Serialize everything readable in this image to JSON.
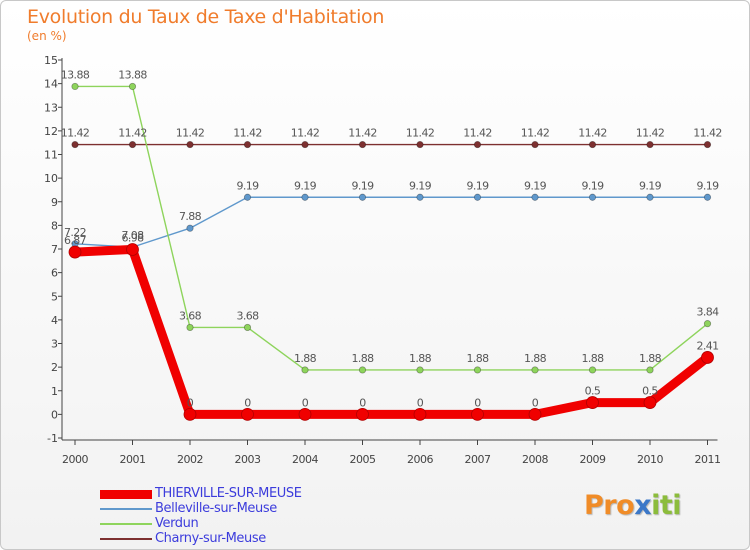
{
  "title": "Evolution du Taux de Taxe d'Habitation",
  "subtitle": "(en %)",
  "logo": {
    "text": "Proxiti",
    "letter_colors": [
      "#f08c28",
      "#f08c28",
      "#f08c28",
      "#3c78c8",
      "#8cbc3c",
      "#8cbc3c",
      "#8cbc3c"
    ]
  },
  "chart_data": {
    "type": "line",
    "title": "Evolution du Taux de Taxe d'Habitation",
    "subtitle": "(en %)",
    "x": [
      "2000",
      "2001",
      "2002",
      "2003",
      "2004",
      "2005",
      "2006",
      "2007",
      "2008",
      "2009",
      "2010",
      "2011"
    ],
    "ylim": [
      -1,
      15
    ],
    "yticks": [
      -1,
      0,
      1,
      2,
      3,
      4,
      5,
      6,
      7,
      8,
      9,
      10,
      11,
      12,
      13,
      14,
      15
    ],
    "grid": false,
    "legend_position": "bottom-left",
    "series": [
      {
        "name": "THIERVILLE-SUR-MEUSE",
        "color": "#f00000",
        "values": [
          6.87,
          6.98,
          0,
          0,
          0,
          0,
          0,
          0,
          0,
          0.5,
          0.5,
          2.41
        ],
        "labels": [
          "6.87",
          "6.98",
          "0",
          "0",
          "0",
          "0",
          "0",
          "0",
          "0",
          "0.5",
          "0.5",
          "2.41"
        ]
      },
      {
        "name": "Belleville-sur-Meuse",
        "color": "#5f98cc",
        "values": [
          7.22,
          7.08,
          7.88,
          9.19,
          9.19,
          9.19,
          9.19,
          9.19,
          9.19,
          9.19,
          9.19,
          9.19
        ],
        "labels": [
          "7.22",
          "7.08",
          "7.88",
          "9.19",
          "9.19",
          "9.19",
          "9.19",
          "9.19",
          "9.19",
          "9.19",
          "9.19",
          "9.19"
        ]
      },
      {
        "name": "Verdun",
        "color": "#8ed45c",
        "values": [
          13.88,
          13.88,
          3.68,
          3.68,
          1.88,
          1.88,
          1.88,
          1.88,
          1.88,
          1.88,
          1.88,
          3.84
        ],
        "labels": [
          "13.88",
          "13.88",
          "3.68",
          "3.68",
          "1.88",
          "1.88",
          "1.88",
          "1.88",
          "1.88",
          "1.88",
          "1.88",
          "3.84"
        ]
      },
      {
        "name": "Charny-sur-Meuse",
        "color": "#7d3030",
        "values": [
          11.42,
          11.42,
          11.42,
          11.42,
          11.42,
          11.42,
          11.42,
          11.42,
          11.42,
          11.42,
          11.42,
          11.42
        ],
        "labels": [
          "11.42",
          "11.42",
          "11.42",
          "11.42",
          "11.42",
          "11.42",
          "11.42",
          "11.42",
          "11.42",
          "11.42",
          "11.42",
          "11.42"
        ]
      }
    ]
  }
}
